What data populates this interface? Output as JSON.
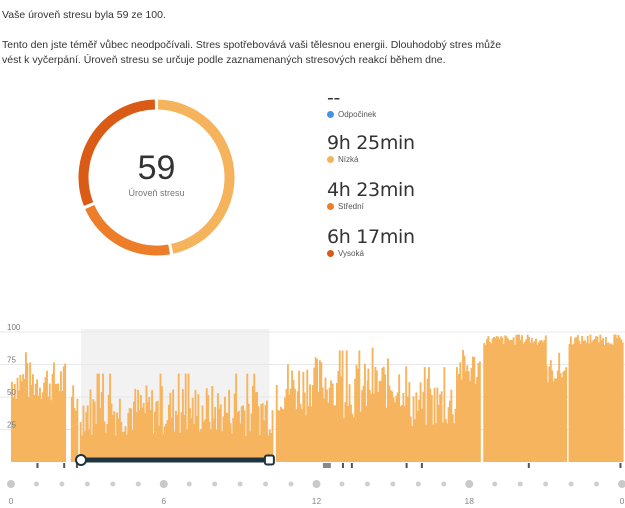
{
  "summary": "Vaše úroveň stresu byla 59 ze 100.",
  "description": "Tento den jste téměř vůbec neodpočívali. Stres spotřebovává vaši tělesnou energii. Dlouhodobý stres může vést k vyčerpání. Úroveň stresu se určuje podle zaznamenaných stresových reakcí během dne.",
  "stress_level": {
    "value": "59",
    "label": "Úroveň stresu"
  },
  "legend": [
    {
      "value": "--",
      "label": "Odpočinek",
      "color": "#4a90e2"
    },
    {
      "value": "9h 25min",
      "label": "Nízká",
      "color": "#f5b35b"
    },
    {
      "value": "4h 23min",
      "label": "Střední",
      "color": "#ed7d28"
    },
    {
      "value": "6h 17min",
      "label": "Vysoká",
      "color": "#d95b16"
    }
  ],
  "colors": {
    "low": "#f5b35b",
    "medium": "#ed7d28",
    "high": "#d95b16",
    "bar": "#f7b45e",
    "selection": "#1e3440"
  },
  "chart_data": {
    "type": "bar",
    "ylim": [
      0,
      100
    ],
    "y_ticks": [
      "100",
      "75",
      "50",
      "25"
    ],
    "x_ticks": [
      "0",
      "6",
      "12",
      "18",
      "0"
    ],
    "x_tick_hours": [
      0,
      6,
      12,
      18,
      24
    ],
    "donut_segments": [
      {
        "name": "Nízká",
        "minutes": 565
      },
      {
        "name": "Střední",
        "minutes": 263
      },
      {
        "name": "Vysoká",
        "minutes": 377
      }
    ],
    "highlight_range_hours": [
      2.75,
      10.15
    ],
    "selection_range_hours": [
      2.75,
      10.15
    ],
    "segments": [
      {
        "start": 0.0,
        "end": 2.1,
        "base": 62,
        "spread": 16
      },
      {
        "start": 2.35,
        "end": 2.6,
        "base": 45,
        "spread": 10
      },
      {
        "start": 2.7,
        "end": 10.25,
        "base": 40,
        "spread": 20
      },
      {
        "start": 10.4,
        "end": 11.6,
        "base": 58,
        "spread": 22
      },
      {
        "start": 11.6,
        "end": 12.6,
        "base": 62,
        "spread": 20
      },
      {
        "start": 12.6,
        "end": 14.0,
        "base": 55,
        "spread": 22
      },
      {
        "start": 14.0,
        "end": 15.5,
        "base": 60,
        "spread": 20
      },
      {
        "start": 15.5,
        "end": 17.5,
        "base": 45,
        "spread": 20
      },
      {
        "start": 17.5,
        "end": 18.4,
        "base": 72,
        "spread": 15
      },
      {
        "start": 18.55,
        "end": 21.0,
        "base": 94,
        "spread": 4
      },
      {
        "start": 21.0,
        "end": 21.8,
        "base": 70,
        "spread": 10
      },
      {
        "start": 21.9,
        "end": 24.0,
        "base": 94,
        "spread": 4
      }
    ]
  }
}
